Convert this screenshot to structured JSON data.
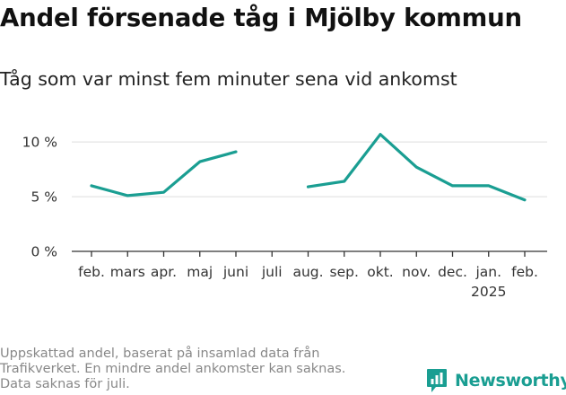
{
  "colors": {
    "line": "#1a9e92",
    "grid": "#dddddd",
    "axis": "#333333",
    "brand": "#1a9e92"
  },
  "brand": {
    "name": "Newsworthy"
  },
  "footnote": [
    "Uppskattad andel, baserat på insamlad data från",
    "Trafikverket. En mindre andel ankomster kan saknas.",
    "Data saknas för juli."
  ],
  "chart_data": {
    "type": "line",
    "title": "Andel försenade tåg i Mjölby kommun",
    "subtitle": "Tåg som var minst fem minuter sena vid ankomst",
    "categories": [
      "feb.",
      "mars",
      "apr.",
      "maj",
      "juni",
      "juli",
      "aug.",
      "sep.",
      "okt.",
      "nov.",
      "dec.",
      "jan.",
      "feb."
    ],
    "year_labels": [
      "",
      "",
      "",
      "",
      "",
      "",
      "",
      "",
      "",
      "",
      "",
      "2025",
      ""
    ],
    "series": [
      {
        "values": [
          6.0,
          5.1,
          5.4,
          8.2,
          9.1,
          null,
          5.9,
          6.4,
          10.7,
          7.7,
          6.0,
          6.0,
          4.7
        ]
      }
    ],
    "yticks": [
      0,
      5,
      10
    ],
    "ytick_labels": [
      "0 %",
      "5 %",
      "10 %"
    ],
    "ylim": [
      0,
      11
    ],
    "grid": true,
    "legend": "none"
  }
}
